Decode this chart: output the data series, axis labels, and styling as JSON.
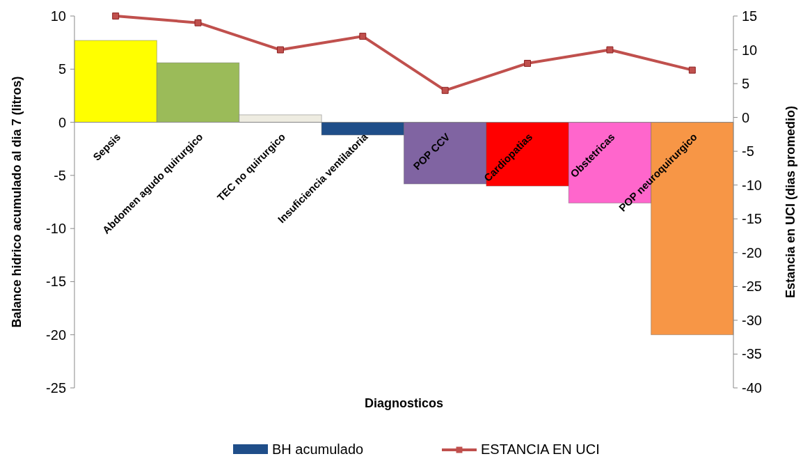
{
  "chart_data": {
    "type": "bar",
    "xlabel": "Diagnosticos",
    "ylabel": "Balance hidrico acumulado al dia 7 (litros)",
    "y2label": "Estancia en UCI (dias promedio)",
    "categories": [
      "Sepsis",
      "Abdomen agudo quirurgico",
      "TEC no quirurgico",
      "Insuficiencia ventilatoria",
      "POP CCV",
      "Cardiopatias",
      "Obstetricas",
      "POP neuroquirurgico"
    ],
    "series": [
      {
        "name": "BH acumulado",
        "color": "#1f4e89",
        "colors": [
          "#ffff00",
          "#9bbb59",
          "#eeece1",
          "#1f4e89",
          "#8064a2",
          "#ff0000",
          "#ff66cc",
          "#f79646"
        ],
        "values": [
          7.7,
          5.6,
          0.7,
          -1.2,
          -5.8,
          -6.0,
          -7.6,
          -20.0
        ]
      },
      {
        "name": "ESTANCIA EN UCI",
        "type": "line",
        "axis": "y2",
        "color": "#c0504d",
        "marker": "square",
        "values": [
          15,
          14,
          10,
          12,
          4,
          8,
          10,
          7
        ]
      }
    ],
    "ylim": [
      -25,
      10
    ],
    "yticks": [
      -25,
      -20,
      -15,
      -10,
      -5,
      0,
      5,
      10
    ],
    "y2lim": [
      -40,
      15
    ],
    "y2ticks": [
      -40,
      -35,
      -30,
      -25,
      -20,
      -15,
      -10,
      -5,
      0,
      5,
      10,
      15
    ],
    "grid": false,
    "legend": "bottom"
  }
}
